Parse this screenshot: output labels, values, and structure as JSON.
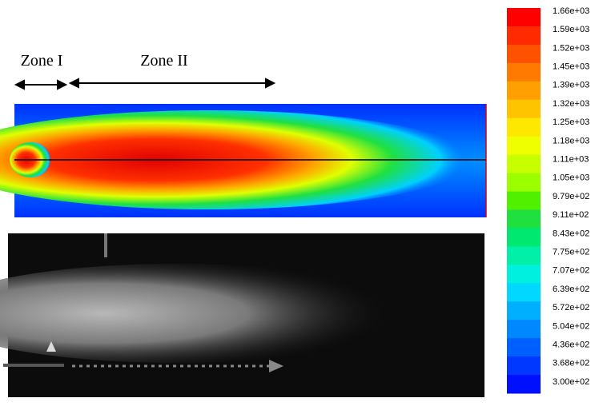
{
  "zones": [
    "Zone I",
    "Zone II"
  ],
  "colorbar": {
    "labels": [
      "1.66e+03",
      "1.59e+03",
      "1.52e+03",
      "1.45e+03",
      "1.39e+03",
      "1.32e+03",
      "1.25e+03",
      "1.18e+03",
      "1.11e+03",
      "1.05e+03",
      "9.79e+02",
      "9.11e+02",
      "8.43e+02",
      "7.75e+02",
      "7.07e+02",
      "6.39e+02",
      "5.72e+02",
      "5.04e+02",
      "4.36e+02",
      "3.68e+02",
      "3.00e+02"
    ]
  }
}
